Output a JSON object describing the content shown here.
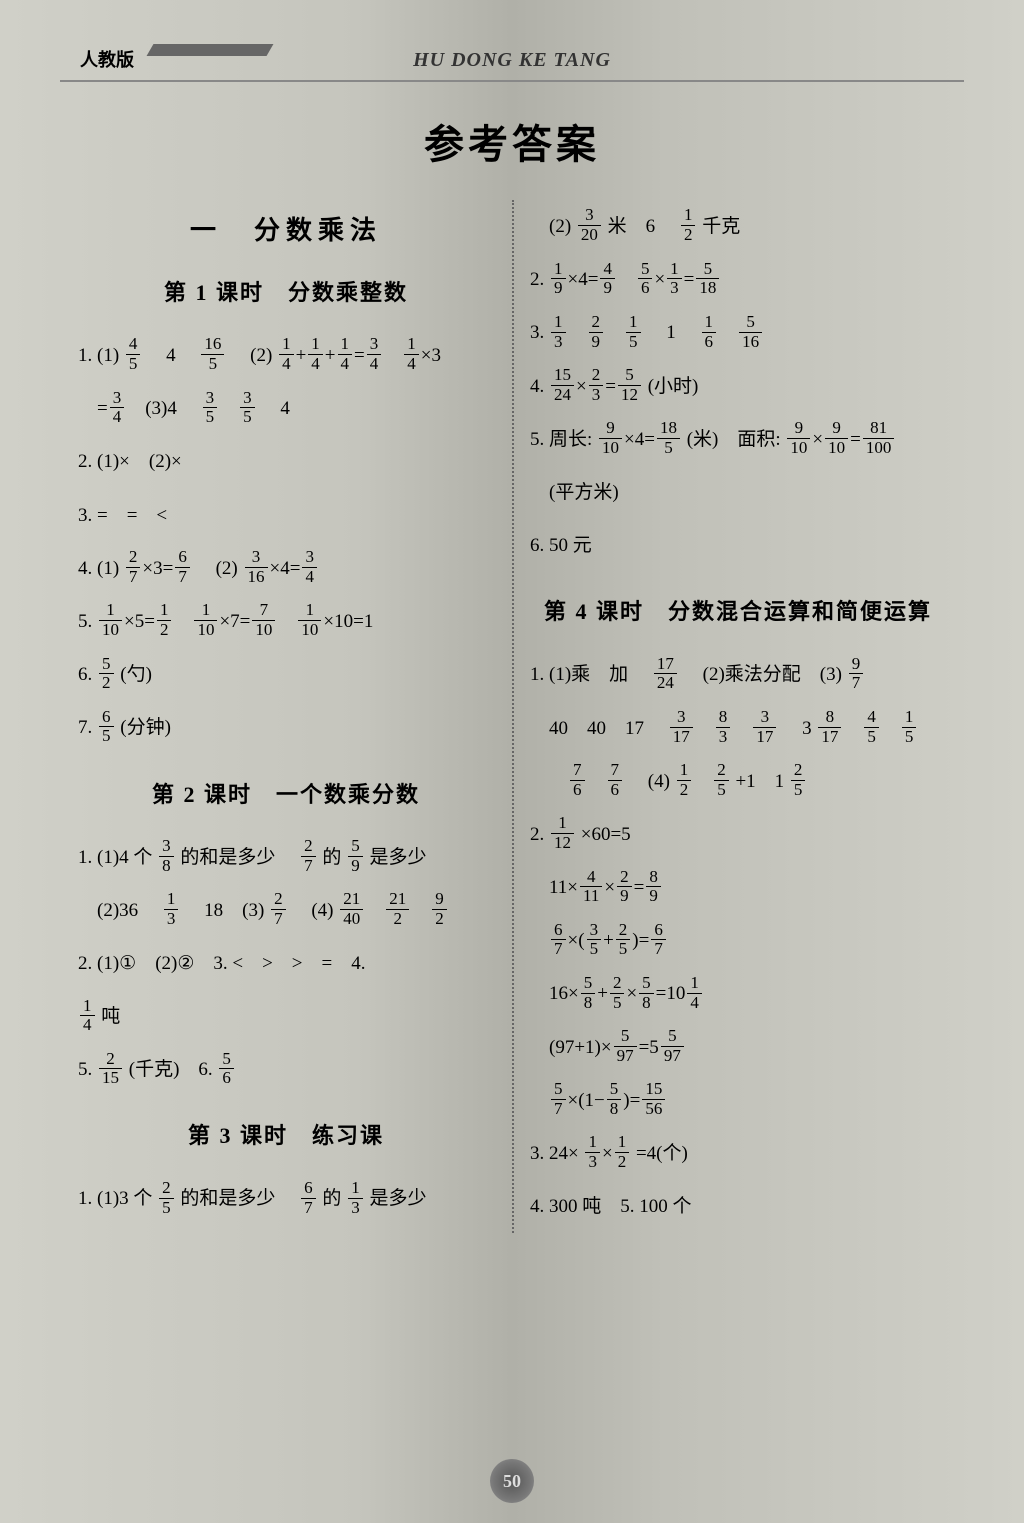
{
  "header": {
    "label": "人教版",
    "pinyin": "HU DONG KE TANG"
  },
  "title": "参考答案",
  "unit1": "一　分数乘法",
  "lesson1": "第 1 课时　分数乘整数",
  "lesson2": "第 2 课时　一个数乘分数",
  "lesson3": "第 3 课时　练习课",
  "lesson4": "第 4 课时　分数混合运算和简便运算",
  "page_number": "50",
  "L": {
    "l1_1a": "1. (1)",
    "l1_1b": "　4　",
    "l1_1c": "　(2)",
    "l1_2a": "(3)4　",
    "l1_2b": "　4",
    "l2": "2. (1)×　(2)×",
    "l3": "3. =　=　<",
    "l4a": "4. (1)",
    "l4b": "　(2)",
    "l5": "5. ",
    "l6": "6. ",
    "l6b": "(勺)",
    "l7": "7. ",
    "l7b": "(分钟)",
    "s2_1a": "1. (1)4 个",
    "s2_1b": "的和是多少　",
    "s2_1c": "的",
    "s2_1d": "是多少",
    "s2_2a": "(2)36　",
    "s2_2b": "　18　(3)",
    "s2_2c": "　(4)",
    "s2_3": "2. (1)①　(2)②　3. <　>　>　=　4.",
    "s2_4": "吨",
    "s2_5": "5. ",
    "s2_5b": "(千克)　6. ",
    "s3_1a": "1. (1)3 个",
    "s3_1b": "的和是多少　",
    "s3_1c": "的",
    "s3_1d": "是多少"
  },
  "R": {
    "r0a": "(2)",
    "r0b": "米　6　",
    "r0c": "千克",
    "r2": "2. ",
    "r3": "3. ",
    "r3b": "　1　",
    "r4": "4. ",
    "r4b": "(小时)",
    "r5a": "5. 周长:",
    "r5b": "(米)　面积:",
    "r5c": "(平方米)",
    "r6": "6. 50 元",
    "s4_1a": "1. (1)乘　加　",
    "s4_1b": "　(2)乘法分配　(3)",
    "s4_1c": "40　40　17　",
    "s4_1d": "　3",
    "s4_1e": "　(4)",
    "s4_1f": "+1　1",
    "s4_2": "2. ",
    "s4_2b": "×60=5",
    "s4_3": "3. 24×",
    "s4_3b": "=4(个)",
    "s4_4": "4. 300 吨　5. 100 个"
  },
  "F": {
    "4_5": {
      "n": "4",
      "d": "5"
    },
    "16_5": {
      "n": "16",
      "d": "5"
    },
    "1_4": {
      "n": "1",
      "d": "4"
    },
    "3_4": {
      "n": "3",
      "d": "4"
    },
    "3_5": {
      "n": "3",
      "d": "5"
    },
    "2_7": {
      "n": "2",
      "d": "7"
    },
    "6_7": {
      "n": "6",
      "d": "7"
    },
    "3_16": {
      "n": "3",
      "d": "16"
    },
    "1_10": {
      "n": "1",
      "d": "10"
    },
    "1_2": {
      "n": "1",
      "d": "2"
    },
    "7_10": {
      "n": "7",
      "d": "10"
    },
    "5_2": {
      "n": "5",
      "d": "2"
    },
    "6_5": {
      "n": "6",
      "d": "5"
    },
    "3_8": {
      "n": "3",
      "d": "8"
    },
    "5_9": {
      "n": "5",
      "d": "9"
    },
    "1_3": {
      "n": "1",
      "d": "3"
    },
    "21_40": {
      "n": "21",
      "d": "40"
    },
    "21_2": {
      "n": "21",
      "d": "2"
    },
    "9_2": {
      "n": "9",
      "d": "2"
    },
    "2_15": {
      "n": "2",
      "d": "15"
    },
    "5_6": {
      "n": "5",
      "d": "6"
    },
    "2_5": {
      "n": "2",
      "d": "5"
    },
    "3_20": {
      "n": "3",
      "d": "20"
    },
    "1_9": {
      "n": "1",
      "d": "9"
    },
    "4_9": {
      "n": "4",
      "d": "9"
    },
    "5_18": {
      "n": "5",
      "d": "18"
    },
    "2_9": {
      "n": "2",
      "d": "9"
    },
    "1_5": {
      "n": "1",
      "d": "5"
    },
    "1_6": {
      "n": "1",
      "d": "6"
    },
    "5_16": {
      "n": "5",
      "d": "16"
    },
    "15_24": {
      "n": "15",
      "d": "24"
    },
    "2_3": {
      "n": "2",
      "d": "3"
    },
    "5_12": {
      "n": "5",
      "d": "12"
    },
    "9_10": {
      "n": "9",
      "d": "10"
    },
    "18_5": {
      "n": "18",
      "d": "5"
    },
    "81_100": {
      "n": "81",
      "d": "100"
    },
    "17_24": {
      "n": "17",
      "d": "24"
    },
    "9_7": {
      "n": "9",
      "d": "7"
    },
    "3_17": {
      "n": "3",
      "d": "17"
    },
    "8_3": {
      "n": "8",
      "d": "3"
    },
    "8_17": {
      "n": "8",
      "d": "17"
    },
    "4_5b": {
      "n": "4",
      "d": "5"
    },
    "7_6": {
      "n": "7",
      "d": "6"
    },
    "1_12": {
      "n": "1",
      "d": "12"
    },
    "4_11": {
      "n": "4",
      "d": "11"
    },
    "8_9": {
      "n": "8",
      "d": "9"
    },
    "5_8": {
      "n": "5",
      "d": "8"
    },
    "5_97": {
      "n": "5",
      "d": "97"
    },
    "5_7": {
      "n": "5",
      "d": "7"
    },
    "15_56": {
      "n": "15",
      "d": "56"
    }
  }
}
